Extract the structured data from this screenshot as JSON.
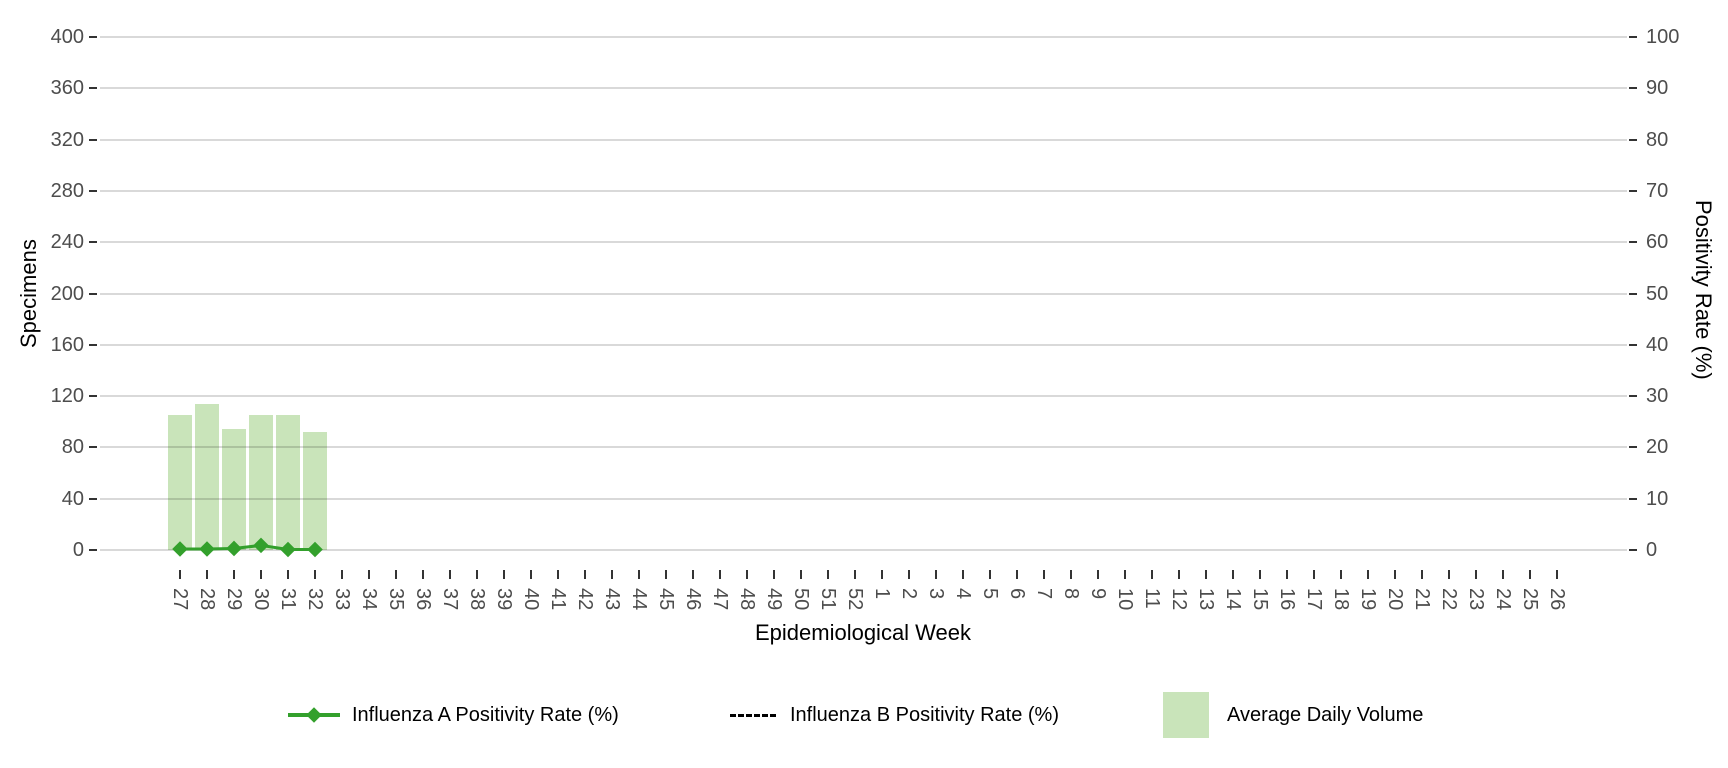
{
  "chart_data": {
    "type": "bar",
    "xlabel": "Epidemiological Week",
    "ylabel_left": "Specimens",
    "ylabel_right": "Positivity Rate (%)",
    "categories": [
      "27",
      "28",
      "29",
      "30",
      "31",
      "32",
      "33",
      "34",
      "35",
      "36",
      "37",
      "38",
      "39",
      "40",
      "41",
      "42",
      "43",
      "44",
      "45",
      "46",
      "47",
      "48",
      "49",
      "50",
      "51",
      "52",
      "1",
      "2",
      "3",
      "4",
      "5",
      "6",
      "7",
      "8",
      "9",
      "10",
      "11",
      "12",
      "13",
      "14",
      "15",
      "16",
      "17",
      "18",
      "19",
      "20",
      "21",
      "22",
      "23",
      "24",
      "25",
      "26"
    ],
    "left_axis": {
      "ticks": [
        0,
        40,
        80,
        120,
        160,
        200,
        240,
        280,
        320,
        360,
        400
      ],
      "range": [
        0,
        400
      ]
    },
    "right_axis": {
      "ticks": [
        0,
        10,
        20,
        30,
        40,
        50,
        60,
        70,
        80,
        90,
        100
      ],
      "range": [
        0,
        100
      ]
    },
    "grid": true,
    "legend_position": "bottom",
    "series": [
      {
        "name": "Influenza A Positivity Rate (%)",
        "type": "line",
        "marker": "diamond",
        "axis": "right",
        "color": "#33a02c",
        "categories": [
          "27",
          "28",
          "29",
          "30",
          "31",
          "32"
        ],
        "values": [
          0.2,
          0.2,
          0.3,
          0.9,
          0.1,
          0.1
        ]
      },
      {
        "name": "Influenza B Positivity Rate (%)",
        "type": "dashed-line",
        "axis": "right",
        "color": "#000000",
        "categories": [],
        "values": []
      },
      {
        "name": "Average Daily Volume",
        "type": "bar",
        "axis": "left",
        "color": "#c9e4ba",
        "categories": [
          "27",
          "28",
          "29",
          "30",
          "31",
          "32"
        ],
        "values": [
          105,
          114,
          94,
          105,
          105,
          92
        ]
      }
    ],
    "colors": {
      "grid": "#d9d9d9",
      "tick_text": "#4d4d4d",
      "tick_mark": "#333333",
      "axis_title": "#000000"
    }
  }
}
